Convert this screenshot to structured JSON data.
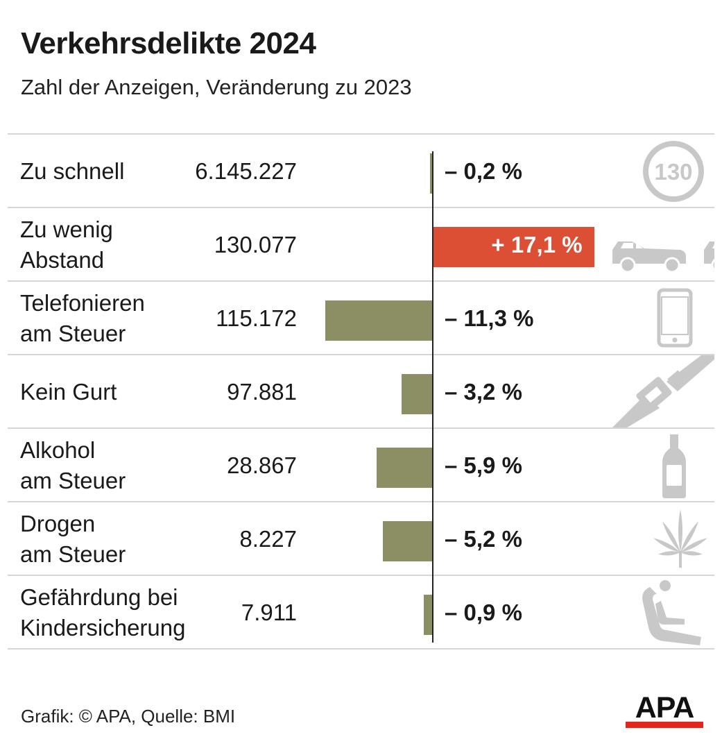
{
  "title": "Verkehrsdelikte 2024",
  "subtitle": "Zahl der Anzeigen, Veränderung zu 2023",
  "footer": "Grafik: © APA, Quelle: BMI",
  "logo": "APA",
  "colors": {
    "negative_bar": "#8c8e63",
    "positive_bar": "#dc4f35",
    "icon": "#c8c8c8",
    "logo_red": "#e3261b"
  },
  "chart_data": {
    "type": "bar",
    "orientation": "horizontal",
    "categories": [
      "Zu schnell",
      "Zu wenig\nAbstand",
      "Telefonieren\nam Steuer",
      "Kein Gurt",
      "Alkohol\nam Steuer",
      "Drogen\nam Steuer",
      "Gefährdung bei\nKindersicherung"
    ],
    "counts": [
      "6.145.227",
      "130.077",
      "115.172",
      "97.881",
      "28.867",
      "8.227",
      "7.911"
    ],
    "values": [
      -0.2,
      17.1,
      -11.3,
      -3.2,
      -5.9,
      -5.2,
      -0.9
    ],
    "value_labels": [
      "– 0,2 %",
      "+ 17,1 %",
      "– 11,3 %",
      "– 3,2 %",
      "– 5,9 %",
      "– 5,2 %",
      "– 0,9 %"
    ],
    "icons": [
      "speed-limit-130-icon",
      "cars-icon",
      "smartphone-icon",
      "seatbelt-icon",
      "bottle-icon",
      "cannabis-leaf-icon",
      "child-seat-icon"
    ],
    "icon_text": [
      "130",
      "",
      "",
      "",
      "",
      "",
      ""
    ],
    "unit": "%"
  }
}
